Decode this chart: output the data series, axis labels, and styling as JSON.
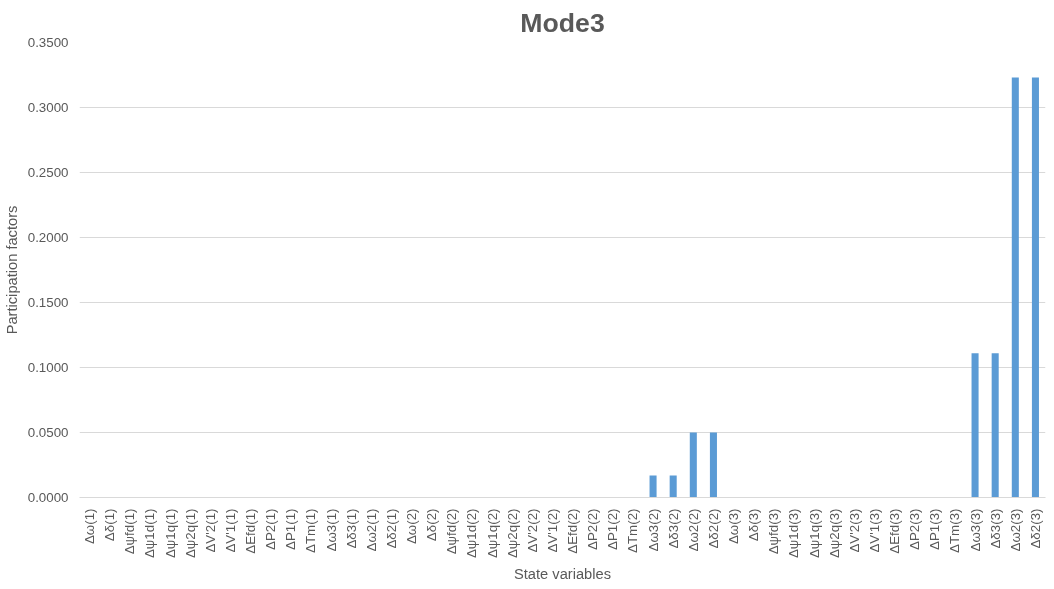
{
  "chart_data": {
    "type": "bar",
    "title": "Mode3",
    "xlabel": "State variables",
    "ylabel": "Participation factors",
    "categories": [
      "Δω(1)",
      "Δδ(1)",
      "Δψfd(1)",
      "Δψ1d(1)",
      "Δψ1q(1)",
      "Δψ2q(1)",
      "ΔV'2(1)",
      "ΔV'1(1)",
      "ΔEfd(1)",
      "ΔP2(1)",
      "ΔP1(1)",
      "ΔTm(1)",
      "Δω3(1)",
      "Δδ3(1)",
      "Δω2(1)",
      "Δδ2(1)",
      "Δω(2)",
      "Δδ(2)",
      "Δψfd(2)",
      "Δψ1d(2)",
      "Δψ1q(2)",
      "Δψ2q(2)",
      "ΔV'2(2)",
      "ΔV'1(2)",
      "ΔEfd(2)",
      "ΔP2(2)",
      "ΔP1(2)",
      "ΔTm(2)",
      "Δω3(2)",
      "Δδ3(2)",
      "Δω2(2)",
      "Δδ2(2)",
      "Δω(3)",
      "Δδ(3)",
      "Δψfd(3)",
      "Δψ1d(3)",
      "Δψ1q(3)",
      "Δψ2q(3)",
      "ΔV'2(3)",
      "ΔV'1(3)",
      "ΔEfd(3)",
      "ΔP2(3)",
      "ΔP1(3)",
      "ΔTm(3)",
      "Δω3(3)",
      "Δδ3(3)",
      "Δω2(3)",
      "Δδ2(3)"
    ],
    "values": [
      0,
      0,
      0,
      0,
      0,
      0,
      0,
      0,
      0,
      0,
      0,
      0,
      0,
      0,
      0,
      0,
      0,
      0,
      0,
      0,
      0,
      0,
      0,
      0,
      0,
      0,
      0,
      0,
      0.017,
      0.017,
      0.05,
      0.05,
      0,
      0,
      0,
      0,
      0,
      0,
      0,
      0,
      0,
      0,
      0,
      0,
      0.111,
      0.111,
      0.323,
      0.323
    ],
    "color": "#5b9bd5",
    "ylim": [
      0,
      0.35
    ],
    "yticks": [
      {
        "value": 0,
        "label": "0.0000"
      },
      {
        "value": 0.05,
        "label": "0.0500"
      },
      {
        "value": 0.1,
        "label": "0.1000"
      },
      {
        "value": 0.15,
        "label": "0.1500"
      },
      {
        "value": 0.2,
        "label": "0.2000"
      },
      {
        "value": 0.25,
        "label": "0.2500"
      },
      {
        "value": 0.3,
        "label": "0.3000"
      },
      {
        "value": 0.35,
        "label": "0.3500"
      }
    ],
    "grid": "y"
  }
}
